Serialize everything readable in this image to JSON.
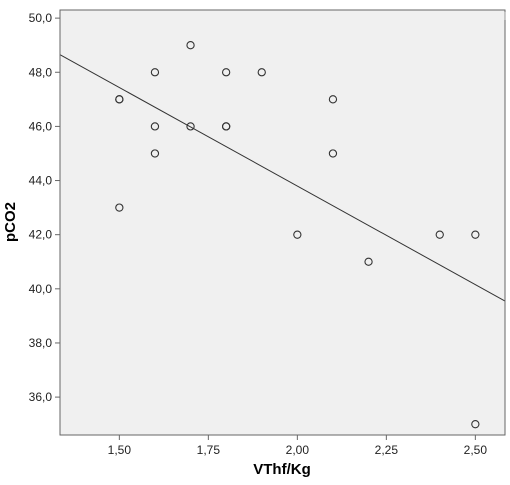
{
  "chart_data": {
    "type": "scatter",
    "xlabel": "VThf/Kg",
    "ylabel": "pCO2",
    "xlim": [
      1.3333,
      2.5833
    ],
    "ylim": [
      34.6,
      50.3
    ],
    "x_ticks": [
      1.5,
      1.75,
      2.0,
      2.25,
      2.5
    ],
    "x_tick_labels": [
      "1,50",
      "1,75",
      "2,00",
      "2,25",
      "2,50"
    ],
    "y_ticks": [
      36,
      38,
      40,
      42,
      44,
      46,
      48,
      50
    ],
    "y_tick_labels": [
      "36,0",
      "38,0",
      "40,0",
      "42,0",
      "44,0",
      "46,0",
      "48,0",
      "50,0"
    ],
    "grid": false,
    "legend": "none",
    "colors": {
      "plot_background": "#f0f0f0",
      "frame": "#666666",
      "marker_stroke": "#333333",
      "fit_line": "#333333"
    },
    "series": [
      {
        "points": [
          {
            "x": 1.5,
            "y": 47
          },
          {
            "x": 1.5,
            "y": 47
          },
          {
            "x": 1.5,
            "y": 43
          },
          {
            "x": 1.6,
            "y": 48
          },
          {
            "x": 1.6,
            "y": 46
          },
          {
            "x": 1.6,
            "y": 45
          },
          {
            "x": 1.7,
            "y": 49
          },
          {
            "x": 1.7,
            "y": 46
          },
          {
            "x": 1.8,
            "y": 48
          },
          {
            "x": 1.8,
            "y": 46
          },
          {
            "x": 1.8,
            "y": 46
          },
          {
            "x": 1.9,
            "y": 48
          },
          {
            "x": 2.0,
            "y": 42
          },
          {
            "x": 2.1,
            "y": 47
          },
          {
            "x": 2.1,
            "y": 45
          },
          {
            "x": 2.2,
            "y": 41
          },
          {
            "x": 2.4,
            "y": 42
          },
          {
            "x": 2.5,
            "y": 42
          },
          {
            "x": 2.5,
            "y": 35
          }
        ]
      }
    ],
    "fit_line": {
      "x": [
        1.3333,
        2.5833
      ],
      "y": [
        48.65,
        39.55
      ]
    }
  }
}
